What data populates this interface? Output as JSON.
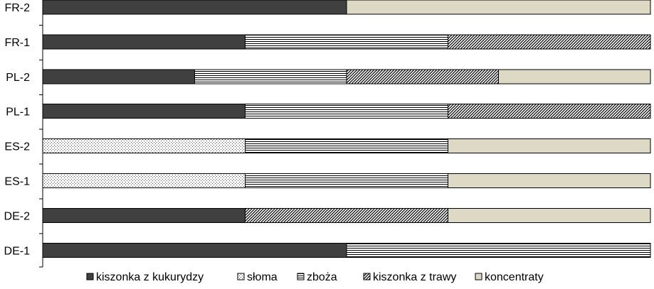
{
  "chart_data": {
    "type": "bar",
    "orientation": "horizontal",
    "stacked": "percent",
    "categories": [
      "FR-2",
      "FR-1",
      "PL-2",
      "PL-1",
      "ES-2",
      "ES-1",
      "DE-2",
      "DE-1"
    ],
    "series": [
      {
        "name": "kiszonka z kukurydzy",
        "color": "#404040",
        "pattern": "solid",
        "values": [
          50,
          33.33,
          25,
          33.33,
          0,
          0,
          33.33,
          50
        ]
      },
      {
        "name": "słoma",
        "color": "#ffffff",
        "pattern": "dots",
        "values": [
          0,
          0,
          0,
          0,
          33.33,
          33.33,
          0,
          0
        ]
      },
      {
        "name": "zboża",
        "color": "#ffffff",
        "pattern": "horizontal-lines",
        "values": [
          0,
          33.33,
          25,
          33.33,
          33.33,
          33.33,
          0,
          50
        ]
      },
      {
        "name": "kiszonka z trawy",
        "color": "#ffffff",
        "pattern": "diagonal-lines",
        "values": [
          0,
          33.33,
          25,
          33.33,
          0,
          0,
          33.33,
          0
        ]
      },
      {
        "name": "koncentraty",
        "color": "#ddd9c4",
        "pattern": "solid",
        "values": [
          50,
          0,
          25,
          0,
          33.33,
          33.33,
          33.33,
          0
        ]
      }
    ],
    "xlim": [
      0,
      100
    ],
    "grid": false,
    "legend_position": "bottom"
  }
}
